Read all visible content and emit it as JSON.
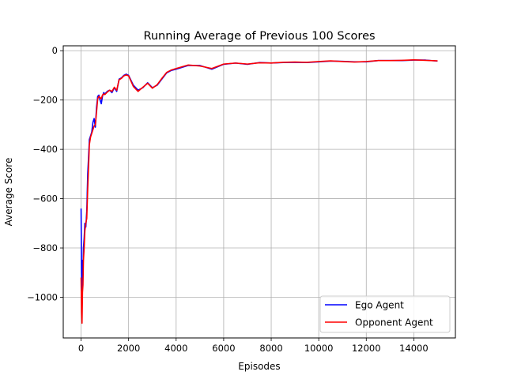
{
  "chart_data": {
    "type": "line",
    "title": "Running Average of Previous 100 Scores",
    "xlabel": "Episodes",
    "ylabel": "Average Score",
    "xlim": [
      -750,
      15750
    ],
    "ylim": [
      -1165,
      20
    ],
    "xticks": [
      0,
      2000,
      4000,
      6000,
      8000,
      10000,
      12000,
      14000
    ],
    "yticks": [
      -1000,
      -800,
      -600,
      -400,
      -200,
      0
    ],
    "xtick_labels": [
      "0",
      "2000",
      "4000",
      "6000",
      "8000",
      "10000",
      "12000",
      "14000"
    ],
    "ytick_labels": [
      "−1000",
      "−800",
      "−600",
      "−400",
      "−200",
      "0"
    ],
    "grid": true,
    "legend_position": "lower-right",
    "series": [
      {
        "name": "Ego Agent",
        "color": "#0000ff",
        "x": [
          0,
          20,
          40,
          60,
          80,
          100,
          130,
          160,
          200,
          240,
          280,
          320,
          350,
          400,
          450,
          500,
          550,
          600,
          650,
          700,
          750,
          800,
          850,
          900,
          950,
          1000,
          1100,
          1200,
          1300,
          1400,
          1500,
          1600,
          1700,
          1800,
          1900,
          2000,
          2200,
          2400,
          2600,
          2800,
          3000,
          3200,
          3400,
          3600,
          3800,
          4000,
          4500,
          5000,
          5500,
          6000,
          6500,
          7000,
          7500,
          8000,
          8500,
          9000,
          9500,
          10000,
          10500,
          11000,
          11500,
          12000,
          12500,
          13000,
          13500,
          14000,
          14500,
          15000
        ],
        "values": [
          -640,
          -900,
          -1010,
          -850,
          -900,
          -800,
          -760,
          -700,
          -715,
          -650,
          -500,
          -420,
          -360,
          -345,
          -330,
          -290,
          -275,
          -310,
          -230,
          -185,
          -180,
          -200,
          -215,
          -185,
          -170,
          -175,
          -165,
          -160,
          -170,
          -150,
          -165,
          -115,
          -110,
          -100,
          -95,
          -100,
          -140,
          -160,
          -150,
          -130,
          -150,
          -140,
          -115,
          -90,
          -80,
          -75,
          -60,
          -60,
          -75,
          -55,
          -50,
          -55,
          -48,
          -50,
          -48,
          -47,
          -48,
          -45,
          -42,
          -43,
          -45,
          -45,
          -40,
          -40,
          -40,
          -38,
          -38,
          -42
        ]
      },
      {
        "name": "Opponent Agent",
        "color": "#ff0000",
        "x": [
          0,
          20,
          40,
          60,
          80,
          100,
          130,
          160,
          200,
          240,
          280,
          320,
          350,
          400,
          450,
          500,
          550,
          600,
          650,
          700,
          750,
          800,
          850,
          900,
          950,
          1000,
          1100,
          1200,
          1300,
          1400,
          1500,
          1600,
          1700,
          1800,
          1900,
          2000,
          2200,
          2400,
          2600,
          2800,
          3000,
          3200,
          3400,
          3600,
          3800,
          4000,
          4500,
          5000,
          5500,
          6000,
          6500,
          7000,
          7500,
          8000,
          8500,
          9000,
          9500,
          10000,
          10500,
          11000,
          11500,
          12000,
          12500,
          13000,
          13500,
          14000,
          14500,
          15000
        ],
        "values": [
          -920,
          -1060,
          -1105,
          -980,
          -950,
          -850,
          -800,
          -730,
          -700,
          -680,
          -560,
          -460,
          -380,
          -350,
          -335,
          -320,
          -305,
          -300,
          -250,
          -195,
          -185,
          -190,
          -195,
          -180,
          -175,
          -178,
          -168,
          -160,
          -165,
          -148,
          -160,
          -118,
          -112,
          -102,
          -98,
          -102,
          -145,
          -165,
          -148,
          -132,
          -152,
          -138,
          -112,
          -88,
          -78,
          -72,
          -58,
          -62,
          -72,
          -54,
          -50,
          -54,
          -49,
          -50,
          -47,
          -46,
          -47,
          -44,
          -41,
          -44,
          -46,
          -44,
          -40,
          -40,
          -39,
          -37,
          -39,
          -41
        ]
      }
    ]
  }
}
